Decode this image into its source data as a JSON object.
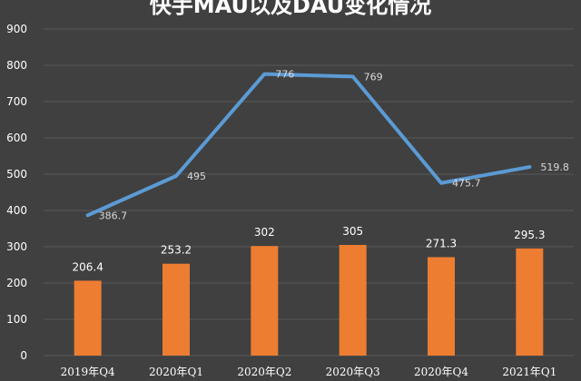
{
  "chart_data": {
    "type": "bar+line",
    "title": "快手MAU以及DAU变化情况",
    "categories": [
      "2019年Q4",
      "2020年Q1",
      "2020年Q2",
      "2020年Q3",
      "2020年Q4",
      "2021年Q1"
    ],
    "series": [
      {
        "type": "line",
        "values": [
          386.7,
          495,
          776,
          769,
          475.7,
          519.8
        ],
        "labels": [
          "386.7",
          "495",
          "776",
          "769",
          "475.7",
          "519.8"
        ],
        "color": "#5b9bd5"
      },
      {
        "type": "bar",
        "values": [
          206.4,
          253.2,
          302,
          305,
          271.3,
          295.3
        ],
        "labels": [
          "206.4",
          "253.2",
          "302",
          "305",
          "271.3",
          "295.3"
        ],
        "color": "#ed7d31"
      }
    ],
    "yticks": [
      0,
      100,
      200,
      300,
      400,
      500,
      600,
      700,
      800,
      900
    ],
    "ylim": [
      0,
      900
    ],
    "grid": true,
    "legend": "none",
    "colors": {
      "background": "#404040",
      "grid": "#595959",
      "text": "#ffffff"
    }
  }
}
